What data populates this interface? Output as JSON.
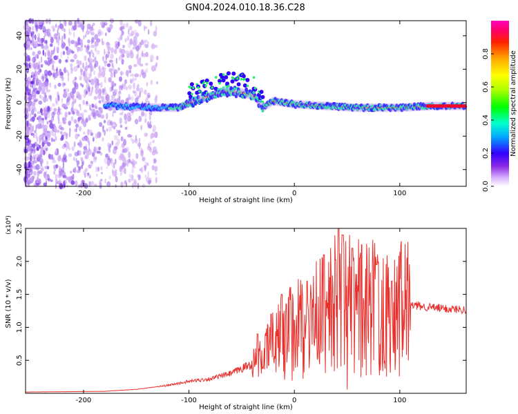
{
  "title": "GN04.2024.010.18.36.C28",
  "chart_data": [
    {
      "type": "heatmap",
      "xlabel": "Height of straight line (km)",
      "ylabel": "Frequency (Hz)",
      "xlim": [
        -255,
        163
      ],
      "ylim": [
        -50,
        49
      ],
      "x_ticks": [
        -200,
        -100,
        0,
        100
      ],
      "y_ticks": [
        -40,
        -20,
        0,
        20,
        40
      ],
      "colorbar": {
        "label": "Normalized spectral amplitude",
        "range": [
          0,
          1
        ],
        "ticks": [
          "0.0",
          "0.2",
          "0.4",
          "0.6",
          "0.8"
        ],
        "colormap": "white-violet-blue-cyan-green-yellow-orange-red-magenta"
      },
      "ridge": [
        {
          "x": -255,
          "y": 0
        },
        {
          "x": -200,
          "y": -1
        },
        {
          "x": -170,
          "y": -2
        },
        {
          "x": -130,
          "y": -3
        },
        {
          "x": -110,
          "y": -3
        },
        {
          "x": -95,
          "y": 1
        },
        {
          "x": -80,
          "y": 4
        },
        {
          "x": -65,
          "y": 7
        },
        {
          "x": -50,
          "y": 6
        },
        {
          "x": -38,
          "y": 4
        },
        {
          "x": -30,
          "y": -3
        },
        {
          "x": -20,
          "y": 1
        },
        {
          "x": 0,
          "y": -1
        },
        {
          "x": 30,
          "y": -2
        },
        {
          "x": 60,
          "y": -3
        },
        {
          "x": 100,
          "y": -3
        },
        {
          "x": 130,
          "y": -2
        },
        {
          "x": 163,
          "y": -2
        }
      ]
    },
    {
      "type": "line",
      "xlabel": "Height of straight line (km)",
      "ylabel": "SNR (10 * v/v)",
      "y_multiplier": "(x10⁴)",
      "xlim": [
        -255,
        163
      ],
      "ylim": [
        0,
        2.5
      ],
      "x_ticks": [
        -200,
        -100,
        0,
        100
      ],
      "y_ticks": [
        "0.5",
        "1.0",
        "1.5",
        "2.0",
        "2.5"
      ],
      "color": "#e8302c",
      "envelope": [
        {
          "x": -255,
          "y": 0.02
        },
        {
          "x": -180,
          "y": 0.03
        },
        {
          "x": -150,
          "y": 0.06
        },
        {
          "x": -120,
          "y": 0.12
        },
        {
          "x": -100,
          "y": 0.18
        },
        {
          "x": -80,
          "y": 0.22
        },
        {
          "x": -60,
          "y": 0.3
        },
        {
          "x": -40,
          "y": 0.45
        },
        {
          "x": -30,
          "y": 0.55
        },
        {
          "x": -20,
          "y": 0.8
        },
        {
          "x": -10,
          "y": 0.95
        },
        {
          "x": 0,
          "y": 1.0
        },
        {
          "x": 10,
          "y": 1.1
        },
        {
          "x": 25,
          "y": 1.2
        },
        {
          "x": 40,
          "y": 1.35
        },
        {
          "x": 55,
          "y": 1.35
        },
        {
          "x": 70,
          "y": 1.35
        },
        {
          "x": 85,
          "y": 1.3
        },
        {
          "x": 100,
          "y": 1.35
        },
        {
          "x": 115,
          "y": 1.33
        },
        {
          "x": 130,
          "y": 1.3
        },
        {
          "x": 145,
          "y": 1.28
        },
        {
          "x": 163,
          "y": 1.27
        }
      ],
      "peaks": [
        {
          "x": -35,
          "y": 0.9
        },
        {
          "x": -22,
          "y": 1.2
        },
        {
          "x": -12,
          "y": 1.5
        },
        {
          "x": 12,
          "y": 1.7
        },
        {
          "x": 28,
          "y": 2.1
        },
        {
          "x": 42,
          "y": 2.5
        },
        {
          "x": 46,
          "y": 2.4
        },
        {
          "x": 55,
          "y": 2.2
        },
        {
          "x": 62,
          "y": 2.05
        },
        {
          "x": 78,
          "y": 1.95
        },
        {
          "x": 92,
          "y": 1.7
        }
      ]
    }
  ]
}
